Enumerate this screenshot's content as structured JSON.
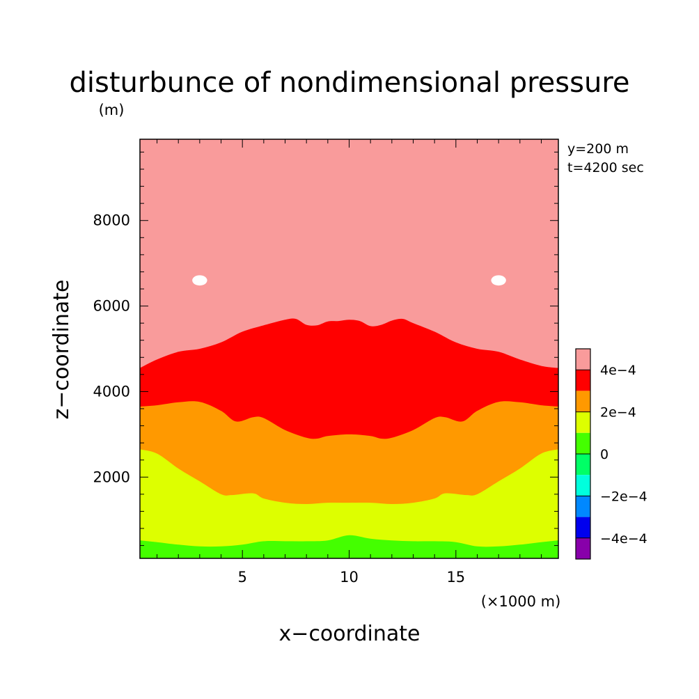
{
  "chart_data": {
    "type": "heatmap",
    "title": "disturbunce of nondimensional pressure",
    "y_unit": "(m)",
    "x_unit": "(×1000 m)",
    "xlabel": "x−coordinate",
    "ylabel": "z−coordinate",
    "info": [
      "y=200 m",
      "t=4200 sec"
    ],
    "xlim": [
      0.2,
      19.8
    ],
    "ylim": [
      100,
      9900
    ],
    "x_ticks": [
      {
        "value": 5,
        "label": "5"
      },
      {
        "value": 10,
        "label": "10"
      },
      {
        "value": 15,
        "label": "15"
      }
    ],
    "y_ticks": [
      {
        "value": 2000,
        "label": "2000"
      },
      {
        "value": 4000,
        "label": "4000"
      },
      {
        "value": 6000,
        "label": "6000"
      },
      {
        "value": 8000,
        "label": "8000"
      }
    ],
    "x_minor_step": 1,
    "y_minor_step": 400,
    "colorbar": {
      "colors": [
        "#f99b9b",
        "#ff0000",
        "#ff9900",
        "#ddff00",
        "#44ff00",
        "#00ff66",
        "#00ffdd",
        "#0088ff",
        "#0000ee",
        "#8800aa"
      ],
      "labels": [
        {
          "after_band": 1,
          "text": "4e−4"
        },
        {
          "after_band": 3,
          "text": "2e−4"
        },
        {
          "after_band": 5,
          "text": "0"
        },
        {
          "after_band": 7,
          "text": "−2e−4"
        },
        {
          "after_band": 9,
          "text": "−4e−4"
        }
      ]
    },
    "regions": [
      {
        "name": ">5e-4 (white)",
        "color": "#ffffff"
      },
      {
        "name": "4e-4 to 5e-4",
        "color": "#f99b9b"
      },
      {
        "name": "3e-4 to 4e-4",
        "color": "#ff0000"
      },
      {
        "name": "2e-4 to 3e-4",
        "color": "#ff9900"
      },
      {
        "name": "1e-4 to 2e-4",
        "color": "#ddff00"
      },
      {
        "name": "0 to 1e-4",
        "color": "#44ff00"
      }
    ],
    "contours": [
      {
        "level": "4e-4",
        "x": [
          0.2,
          1.0,
          2.0,
          3.0,
          4.0,
          5.0,
          6.0,
          7.0,
          7.5,
          8.0,
          8.5,
          9.0,
          9.5,
          10.0,
          10.5,
          11.0,
          11.5,
          12.0,
          12.5,
          13.0,
          14.0,
          15.0,
          16.0,
          17.0,
          18.0,
          19.0,
          19.8
        ],
        "z": [
          4550,
          4750,
          4930,
          5000,
          5150,
          5400,
          5550,
          5680,
          5700,
          5560,
          5550,
          5640,
          5650,
          5680,
          5650,
          5530,
          5560,
          5660,
          5700,
          5600,
          5400,
          5150,
          5000,
          4930,
          4750,
          4600,
          4550
        ]
      },
      {
        "level": "3e-4",
        "x": [
          0.2,
          1.0,
          2.0,
          3.0,
          4.0,
          4.7,
          5.5,
          6.0,
          7.0,
          8.0,
          8.5,
          9.0,
          10.0,
          11.0,
          11.5,
          12.0,
          13.0,
          14.0,
          14.5,
          15.3,
          16.0,
          17.0,
          18.0,
          19.0,
          19.8
        ],
        "z": [
          3650,
          3680,
          3750,
          3760,
          3550,
          3300,
          3400,
          3380,
          3100,
          2920,
          2900,
          2960,
          3000,
          2960,
          2900,
          2920,
          3100,
          3380,
          3400,
          3300,
          3550,
          3760,
          3750,
          3680,
          3650
        ]
      },
      {
        "level": "2e-4",
        "x": [
          0.2,
          1.0,
          2.0,
          3.0,
          4.0,
          4.5,
          5.5,
          6.0,
          7.0,
          8.0,
          9.0,
          10.0,
          11.0,
          12.0,
          13.0,
          14.0,
          14.5,
          15.5,
          16.0,
          17.0,
          18.0,
          19.0,
          19.8
        ],
        "z": [
          2650,
          2550,
          2200,
          1900,
          1600,
          1580,
          1620,
          1500,
          1400,
          1370,
          1400,
          1400,
          1400,
          1370,
          1400,
          1500,
          1620,
          1580,
          1600,
          1900,
          2200,
          2550,
          2650
        ]
      },
      {
        "level": "1e-4",
        "x": [
          0.2,
          1.0,
          2.0,
          3.0,
          4.0,
          5.0,
          6.0,
          7.0,
          8.0,
          9.0,
          10.0,
          11.0,
          12.0,
          13.0,
          14.0,
          15.0,
          16.0,
          17.0,
          18.0,
          19.0,
          19.8
        ],
        "z": [
          520,
          480,
          420,
          380,
          380,
          420,
          500,
          500,
          500,
          520,
          640,
          560,
          520,
          500,
          500,
          480,
          380,
          380,
          420,
          480,
          520
        ]
      }
    ],
    "spots": [
      {
        "x": 3.0,
        "z": 6600,
        "rx": 0.35,
        "rz": 120
      },
      {
        "x": 17.0,
        "z": 6600,
        "rx": 0.35,
        "rz": 120
      }
    ]
  }
}
